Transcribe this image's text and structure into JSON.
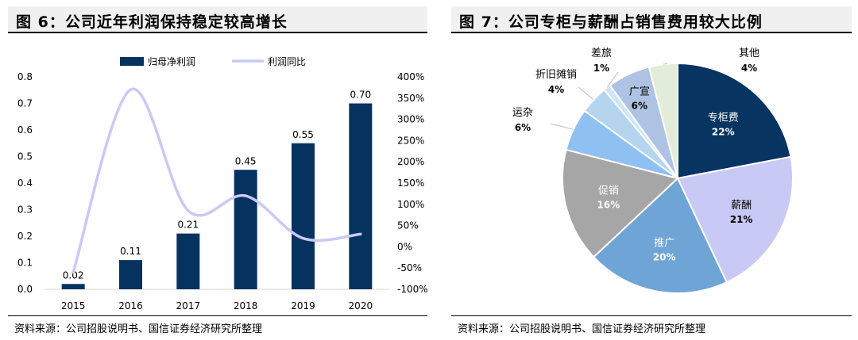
{
  "fig6": {
    "title": "图 6：公司近年利润保持稳定较高增长",
    "source": "资料来源：公司招股说明书、国信证券经济研究所整理"
  },
  "fig7": {
    "title": "图 7：公司专柜与薪酬占销售费用较大比例",
    "source": "资料来源：公司招股说明书、国信证券经济研究所整理"
  },
  "colors": {
    "bar": "#05325f",
    "line": "#c9c9f7",
    "pie": [
      "#073461",
      "#c9c9f5",
      "#6fa5d6",
      "#a6a6a6",
      "#8fc0f2",
      "#b5d4ef",
      "#cde5f7",
      "#aec3e3",
      "#e1ecd9"
    ]
  },
  "chart_data": [
    {
      "type": "bar",
      "title": "公司近年利润保持稳定较高增长",
      "categories": [
        "2015",
        "2016",
        "2017",
        "2018",
        "2019",
        "2020"
      ],
      "series": [
        {
          "name": "归母净利润",
          "type": "bar",
          "axis": "left",
          "values": [
            0.02,
            0.11,
            0.21,
            0.45,
            0.55,
            0.7
          ],
          "labels": [
            "0.02",
            "0.11",
            "0.21",
            "0.45",
            "0.55",
            "0.70"
          ]
        },
        {
          "name": "利润同比",
          "type": "line",
          "axis": "right",
          "values": [
            -60,
            370,
            85,
            120,
            20,
            30
          ]
        }
      ],
      "ylim": [
        0,
        0.8
      ],
      "yticks": [
        "0.0",
        "0.1",
        "0.2",
        "0.3",
        "0.4",
        "0.5",
        "0.6",
        "0.7",
        "0.8"
      ],
      "y2lim": [
        -100,
        400
      ],
      "y2ticks": [
        "-100%",
        "-50%",
        "0%",
        "50%",
        "100%",
        "150%",
        "200%",
        "250%",
        "300%",
        "350%",
        "400%"
      ],
      "legend": "top-center",
      "grid": false
    },
    {
      "type": "pie",
      "title": "公司专柜与薪酬占销售费用较大比例",
      "slices": [
        {
          "name": "专柜费",
          "value": 22,
          "label": "22%"
        },
        {
          "name": "薪酬",
          "value": 21,
          "label": "21%"
        },
        {
          "name": "推广",
          "value": 20,
          "label": "20%"
        },
        {
          "name": "促销",
          "value": 16,
          "label": "16%"
        },
        {
          "name": "运杂",
          "value": 6,
          "label": "6%"
        },
        {
          "name": "折旧摊销",
          "value": 4,
          "label": "4%"
        },
        {
          "name": "差旅",
          "value": 1,
          "label": "1%"
        },
        {
          "name": "广宣",
          "value": 6,
          "label": "6%"
        },
        {
          "name": "其他",
          "value": 4,
          "label": "4%"
        }
      ],
      "legend": "none"
    }
  ]
}
